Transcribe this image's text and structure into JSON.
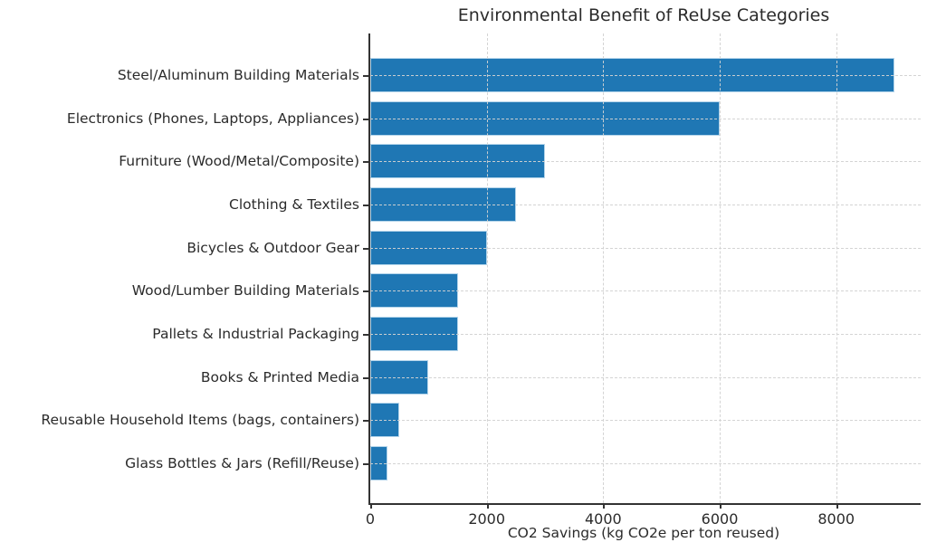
{
  "chart_data": {
    "type": "bar",
    "orientation": "horizontal",
    "title": "Environmental Benefit of ReUse Categories",
    "xlabel": "CO2 Savings (kg CO2e per ton reused)",
    "ylabel": "",
    "categories": [
      "Steel/Aluminum Building Materials",
      "Electronics (Phones, Laptops, Appliances)",
      "Furniture (Wood/Metal/Composite)",
      "Clothing & Textiles",
      "Bicycles & Outdoor Gear",
      "Wood/Lumber Building Materials",
      "Pallets & Industrial Packaging",
      "Books & Printed Media",
      "Reusable Household Items (bags, containers)",
      "Glass Bottles & Jars (Refill/Reuse)"
    ],
    "values": [
      9000,
      6000,
      3000,
      2500,
      2000,
      1500,
      1500,
      1000,
      500,
      300
    ],
    "x_ticks": [
      0,
      2000,
      4000,
      6000,
      8000
    ],
    "xlim": [
      0,
      9450
    ],
    "grid": true,
    "grid_style": "dashed",
    "legend": "none",
    "bar_color": "#1f77b4",
    "bar_edge_color": "#b3d4ea",
    "grid_color": "#d2d2d2",
    "axis_color": "#333333",
    "text_color": "#2b2b2b"
  }
}
